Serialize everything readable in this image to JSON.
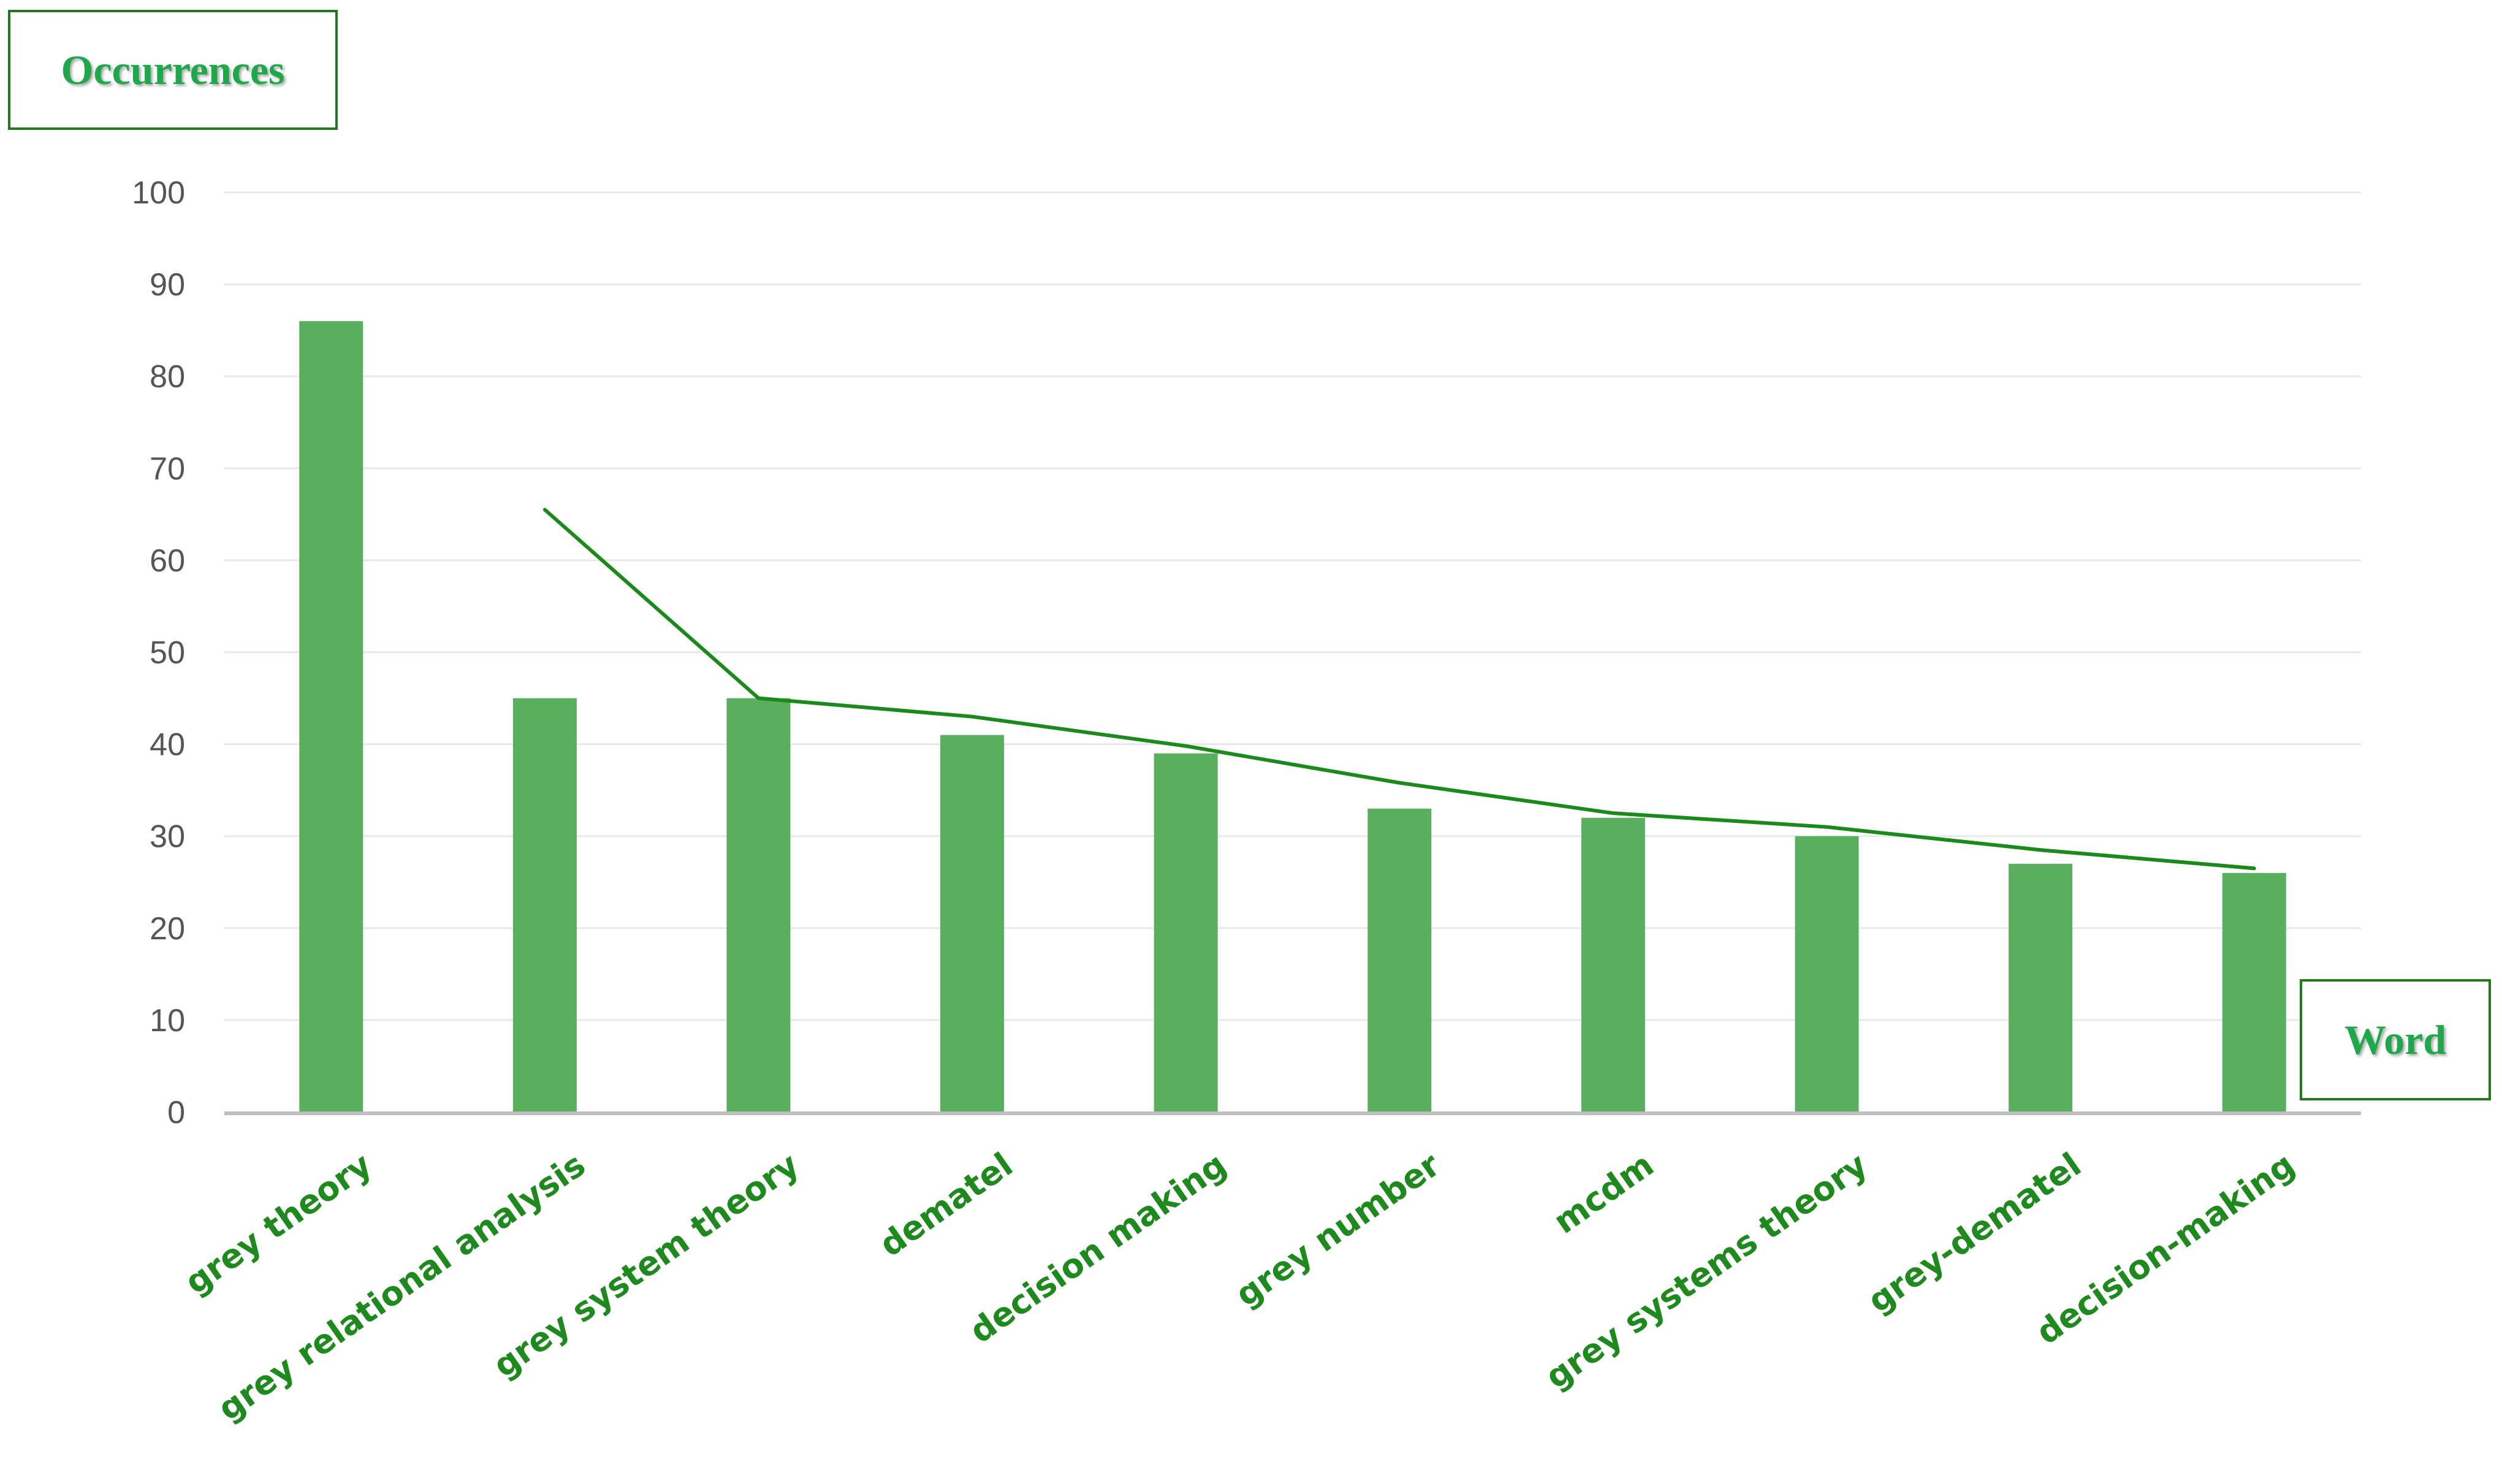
{
  "chart_data": {
    "type": "bar",
    "xlabel": "Word",
    "ylabel": "Occurrences",
    "ylim": [
      0,
      100
    ],
    "yticks": [
      0,
      10,
      20,
      30,
      40,
      50,
      60,
      70,
      80,
      90,
      100
    ],
    "grid": true,
    "categories": [
      "grey theory",
      "grey relational analysis",
      "grey system theory",
      "dematel",
      "decision making",
      "grey number",
      "mcdm",
      "grey systems theory",
      "grey-dematel",
      "decision-making"
    ],
    "series": [
      {
        "type": "bar",
        "values": [
          86,
          45,
          45,
          41,
          39,
          33,
          32,
          30,
          27,
          26
        ]
      },
      {
        "type": "line",
        "values": [
          null,
          65.5,
          45,
          43,
          39.8,
          35.8,
          32.5,
          31,
          28.5,
          26.5
        ]
      }
    ],
    "colors": {
      "bar": "#5aaf5f",
      "line": "#1a8a1a",
      "grid": "#e8e8e8",
      "axis": "#bfbfbf",
      "title": "#1fa84a",
      "tick_label": "#1e8a1e"
    }
  }
}
